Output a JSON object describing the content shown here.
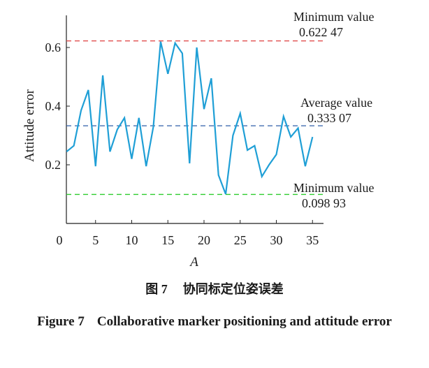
{
  "chart_data": {
    "type": "line",
    "xlabel": "A",
    "ylabel": "Attitude error",
    "xlim": [
      0,
      36
    ],
    "ylim": [
      0,
      0.7
    ],
    "x_ticks": [
      0,
      5,
      10,
      15,
      20,
      25,
      30,
      35
    ],
    "y_ticks": [
      0.2,
      0.4,
      0.6
    ],
    "x_tick_labels": [
      "0",
      "5",
      "10",
      "15",
      "20",
      "25",
      "30",
      "35"
    ],
    "y_tick_labels": [
      "0.2",
      "0.4",
      "0.6"
    ],
    "series": [
      {
        "color": "#1f9fd6",
        "x": [
          1,
          2,
          3,
          4,
          5,
          6,
          7,
          8,
          9,
          10,
          11,
          12,
          13,
          14,
          15,
          16,
          17,
          18,
          19,
          20,
          21,
          22,
          23,
          24,
          25,
          26,
          27,
          28,
          29,
          30,
          31,
          32,
          33,
          34,
          35
        ],
        "y": [
          0.245,
          0.265,
          0.385,
          0.455,
          0.195,
          0.505,
          0.245,
          0.32,
          0.36,
          0.22,
          0.36,
          0.195,
          0.33,
          0.62,
          0.51,
          0.615,
          0.58,
          0.205,
          0.6,
          0.39,
          0.495,
          0.165,
          0.1,
          0.3,
          0.375,
          0.25,
          0.265,
          0.16,
          0.2,
          0.235,
          0.365,
          0.295,
          0.325,
          0.195,
          0.295
        ]
      }
    ],
    "reference_lines": [
      {
        "y": 0.62247,
        "color": "#e04b4b",
        "label": "Minimum value",
        "value_label": "0.622 47"
      },
      {
        "y": 0.33307,
        "color": "#2f5ea8",
        "label": "Average value",
        "value_label": "0.333 07"
      },
      {
        "y": 0.09893,
        "color": "#2ecc2e",
        "label": "Minimum value",
        "value_label": "0.098 93"
      }
    ]
  },
  "caption": {
    "zh_number": "图 7",
    "zh_title": "协同标定位姿误差",
    "en_number": "Figure 7",
    "en_title": "Collaborative marker positioning and attitude error"
  }
}
